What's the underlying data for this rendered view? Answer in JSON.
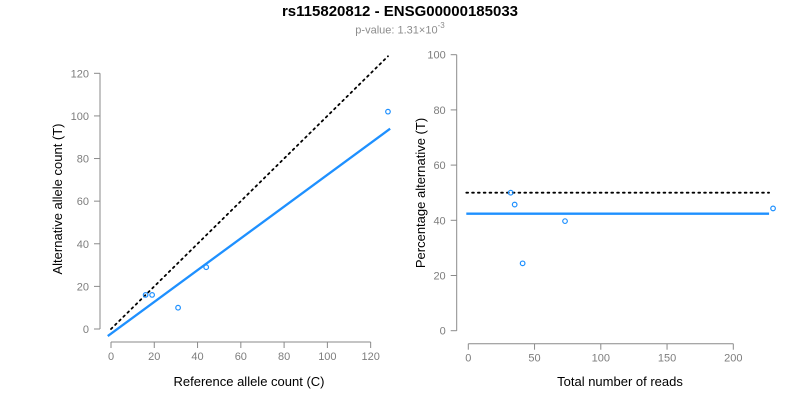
{
  "header": {
    "title": "rs115820812 - ENSG00000185033",
    "pvalue_label": "p-value: 1.31×10",
    "pvalue_exponent": "-3"
  },
  "colors": {
    "accent_blue": "#1E90FF",
    "axis_gray": "#8a8a8a",
    "tick_label_gray": "#7d7d7d",
    "dotted_black": "#000000",
    "subtitle_gray": "#8c8c8c"
  },
  "chart_data": [
    {
      "type": "scatter",
      "title": "",
      "xlabel": "Reference allele count (C)",
      "ylabel": "Alternative allele count (T)",
      "x_ticks": [
        0,
        20,
        40,
        60,
        80,
        100,
        120
      ],
      "y_ticks": [
        0,
        20,
        40,
        60,
        80,
        100,
        120
      ],
      "xlim": [
        -5,
        133
      ],
      "ylim": [
        -6,
        133
      ],
      "grid": false,
      "legend": "none",
      "points": [
        [
          16,
          16
        ],
        [
          19,
          16
        ],
        [
          31,
          10
        ],
        [
          44,
          29
        ],
        [
          128,
          102
        ]
      ],
      "lines": [
        {
          "name": "identity-line",
          "style": "dotted",
          "color": "black",
          "from": [
            0,
            0
          ],
          "to": [
            128,
            128
          ]
        },
        {
          "name": "fit-line",
          "style": "solid",
          "color": "blue",
          "from": [
            -1.5,
            -3.3
          ],
          "to": [
            129,
            94
          ],
          "slope": 0.73
        }
      ]
    },
    {
      "type": "scatter",
      "title": "",
      "xlabel": "Total number of reads",
      "ylabel": "Percentage alternative (T)",
      "x_ticks": [
        0,
        50,
        100,
        150,
        200
      ],
      "y_ticks": [
        0,
        20,
        40,
        60,
        80,
        100
      ],
      "xlim": [
        -9,
        239
      ],
      "ylim": [
        -4,
        104
      ],
      "grid": false,
      "legend": "none",
      "points": [
        [
          32,
          50.0
        ],
        [
          35,
          45.7
        ],
        [
          41,
          24.4
        ],
        [
          73,
          39.7
        ],
        [
          230,
          44.3
        ]
      ],
      "lines": [
        {
          "name": "expected-50pct-line",
          "style": "dotted",
          "color": "black",
          "from": [
            -1.5,
            50
          ],
          "to": [
            227,
            50
          ]
        },
        {
          "name": "fit-line",
          "style": "solid",
          "color": "blue",
          "from": [
            -1.5,
            42.4
          ],
          "to": [
            227,
            42.4
          ]
        }
      ]
    }
  ]
}
